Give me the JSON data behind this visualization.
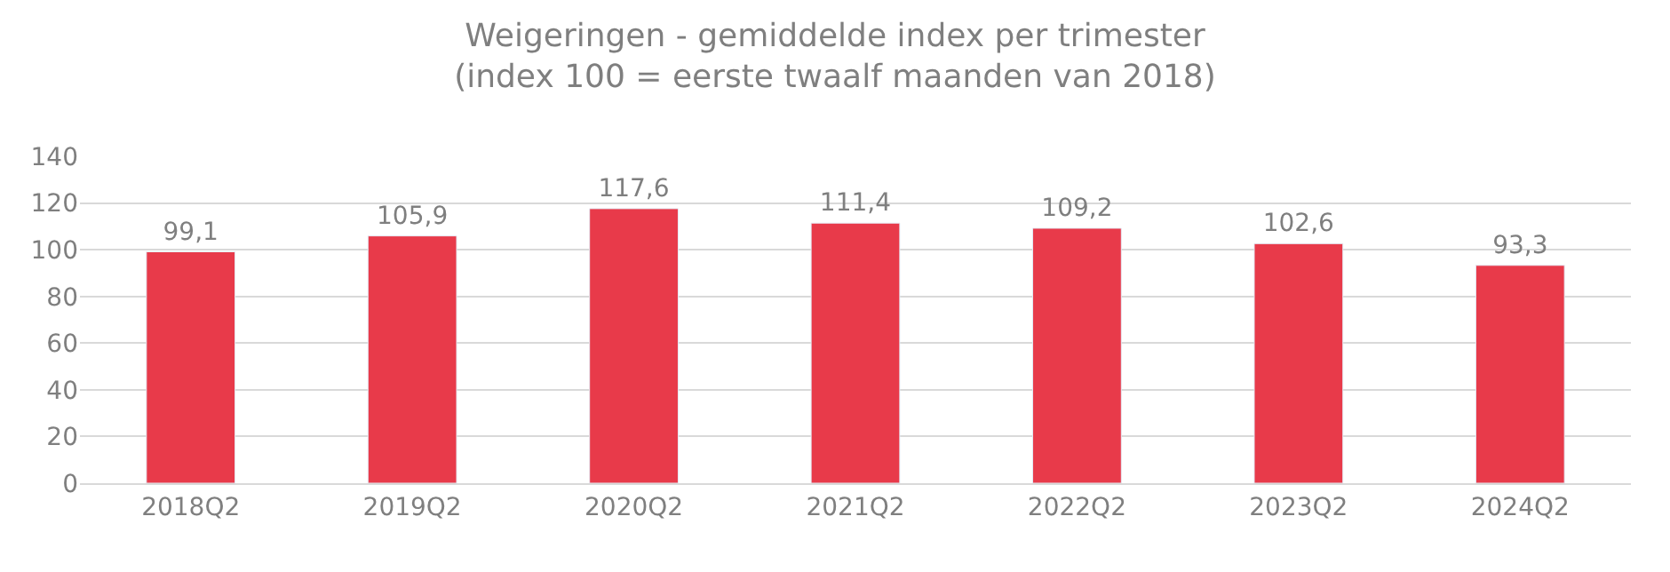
{
  "chart_data": {
    "type": "bar",
    "title": "Weigeringen - gemiddelde index per trimester\n(index 100 = eerste twaalf maanden van 2018)",
    "categories": [
      "2018Q2",
      "2019Q2",
      "2020Q2",
      "2021Q2",
      "2022Q2",
      "2023Q2",
      "2024Q2"
    ],
    "values": [
      99.1,
      105.9,
      117.6,
      111.4,
      109.2,
      102.6,
      93.3
    ],
    "value_labels": [
      "99,1",
      "105,9",
      "117,6",
      "111,4",
      "109,2",
      "102,6",
      "93,3"
    ],
    "color": "#e83a4a",
    "ylim": [
      0,
      140
    ],
    "yticks": [
      0,
      20,
      40,
      60,
      80,
      100,
      120,
      140
    ],
    "grid": "y",
    "legend": false
  }
}
